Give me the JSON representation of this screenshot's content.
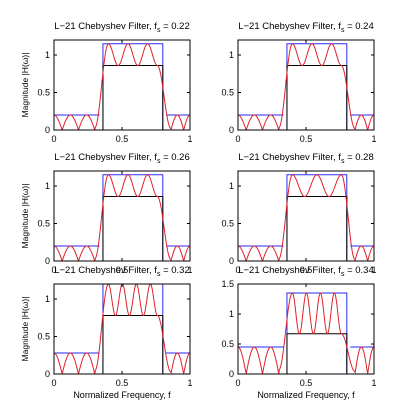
{
  "figure": {
    "xlabel": "Normalized Frequency, f",
    "ylabel": "Magnitude |H(ω)|"
  },
  "colors": {
    "response": "#e0202a",
    "tolerance": "#2a2af0",
    "axes": "#000000"
  },
  "chart_data": [
    {
      "type": "line",
      "title": "L−21 Chebyshev Filter, f",
      "title_subscript": "s",
      "title_value": " = 0.22",
      "show_ylabel": true,
      "show_xlabel": false,
      "xlim": [
        0,
        1
      ],
      "ylim": [
        0,
        1.2
      ],
      "xticks": [
        0,
        0.5,
        1
      ],
      "xtick_labels": [
        "0",
        "0.5",
        "1"
      ],
      "yticks": [
        0,
        0.5,
        1
      ],
      "ytick_labels": [
        "0",
        "0.5",
        "1"
      ],
      "fs": 0.22,
      "pass_low": 0.36,
      "pass_high": 0.8,
      "pass_max": 1.15,
      "pass_min": 0.86,
      "stop_max": 0.2,
      "pass_ripples": 2.5,
      "stop_ripples_left": 2,
      "stop_ripples_right": 1
    },
    {
      "type": "line",
      "title": "L−21 Chebyshev Filter, f",
      "title_subscript": "s",
      "title_value": " = 0.24",
      "show_ylabel": false,
      "show_xlabel": false,
      "xlim": [
        0,
        1
      ],
      "ylim": [
        0,
        1.2
      ],
      "xticks": [
        0,
        0.5,
        1
      ],
      "xtick_labels": [
        "0",
        "0.5",
        "1"
      ],
      "yticks": [
        0,
        0.5,
        1
      ],
      "ytick_labels": [
        "0",
        "0.5",
        "1"
      ],
      "fs": 0.24,
      "pass_low": 0.36,
      "pass_high": 0.8,
      "pass_max": 1.15,
      "pass_min": 0.86,
      "stop_max": 0.2,
      "pass_ripples": 2.5,
      "stop_ripples_left": 2,
      "stop_ripples_right": 1
    },
    {
      "type": "line",
      "title": "L−21 Chebyshev Filter, f",
      "title_subscript": "s",
      "title_value": " = 0.26",
      "show_ylabel": true,
      "show_xlabel": false,
      "xlim": [
        0,
        1
      ],
      "ylim": [
        0,
        1.2
      ],
      "xticks": [
        0,
        0.5,
        1
      ],
      "xtick_labels": [
        "0",
        "0.5",
        "1"
      ],
      "yticks": [
        0,
        0.5,
        1
      ],
      "ytick_labels": [
        "0",
        "0.5",
        "1"
      ],
      "fs": 0.26,
      "pass_low": 0.36,
      "pass_high": 0.8,
      "pass_max": 1.15,
      "pass_min": 0.86,
      "stop_max": 0.2,
      "pass_ripples": 2.5,
      "stop_ripples_left": 2,
      "stop_ripples_right": 1
    },
    {
      "type": "line",
      "title": "L−21 Chebyshev Filter, f",
      "title_subscript": "s",
      "title_value": " = 0.28",
      "show_ylabel": false,
      "show_xlabel": false,
      "xlim": [
        0,
        1
      ],
      "ylim": [
        0,
        1.2
      ],
      "xticks": [
        0,
        0.5,
        1
      ],
      "xtick_labels": [
        "0",
        "0.5",
        "1"
      ],
      "yticks": [
        0,
        0.5,
        1
      ],
      "ytick_labels": [
        "0",
        "0.5",
        "1"
      ],
      "fs": 0.28,
      "pass_low": 0.36,
      "pass_high": 0.8,
      "pass_max": 1.15,
      "pass_min": 0.86,
      "stop_max": 0.2,
      "pass_ripples": 2.0,
      "stop_ripples_left": 2,
      "stop_ripples_right": 1
    },
    {
      "type": "line",
      "title": "L−21 Chebyshev Filter, f",
      "title_subscript": "s",
      "title_value": " = 0.32",
      "show_ylabel": true,
      "show_xlabel": true,
      "xlim": [
        0,
        1
      ],
      "ylim": [
        0,
        1.2
      ],
      "xticks": [
        0,
        0.5,
        1
      ],
      "xtick_labels": [
        "0",
        "0.5",
        "1"
      ],
      "yticks": [
        0,
        0.5,
        1
      ],
      "ytick_labels": [
        "0",
        "0.5",
        "1"
      ],
      "fs": 0.32,
      "pass_low": 0.36,
      "pass_high": 0.8,
      "pass_max": 1.2,
      "pass_min": 0.78,
      "stop_max": 0.28,
      "pass_ripples": 3.5,
      "stop_ripples_left": 2,
      "stop_ripples_right": 1
    },
    {
      "type": "line",
      "title": "L−21 Chebyshev Filter, f",
      "title_subscript": "s",
      "title_value": " = 0.34",
      "show_ylabel": false,
      "show_xlabel": true,
      "xlim": [
        0,
        1
      ],
      "ylim": [
        0,
        1.5
      ],
      "xticks": [
        0,
        0.5,
        1
      ],
      "xtick_labels": [
        "0",
        "0.5",
        "1"
      ],
      "yticks": [
        0,
        0.5,
        1,
        1.5
      ],
      "ytick_labels": [
        "0",
        "0.5",
        "1",
        "1.5"
      ],
      "fs": 0.34,
      "pass_low": 0.36,
      "pass_high": 0.8,
      "pass_max": 1.35,
      "pass_min": 0.67,
      "stop_max": 0.45,
      "pass_ripples": 3.5,
      "stop_ripples_left": 2,
      "stop_ripples_right": 1
    }
  ]
}
